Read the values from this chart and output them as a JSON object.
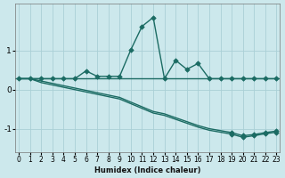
{
  "xlabel": "Humidex (Indice chaleur)",
  "bg_color": "#cce8ec",
  "grid_color": "#aad0d6",
  "line_color": "#1b6b63",
  "x_data": [
    0,
    1,
    2,
    3,
    4,
    5,
    6,
    7,
    8,
    9,
    10,
    11,
    12,
    13,
    14,
    15,
    16,
    17,
    18,
    19,
    20,
    21,
    22,
    23
  ],
  "line_main_y": [
    0.28,
    0.28,
    0.28,
    0.28,
    0.28,
    0.28,
    0.48,
    0.34,
    0.34,
    0.34,
    1.02,
    1.62,
    1.85,
    0.28,
    0.75,
    0.52,
    0.67,
    0.28,
    0.28,
    0.28,
    0.28,
    0.28,
    0.28,
    0.28
  ],
  "line_upper_declining_y": [
    0.28,
    0.28,
    0.22,
    0.16,
    0.1,
    0.04,
    -0.02,
    -0.08,
    -0.14,
    -0.2,
    -0.32,
    -0.44,
    -0.56,
    -0.62,
    -0.72,
    -0.82,
    -0.92,
    -1.0,
    -1.05,
    -1.1,
    -1.18,
    -1.15,
    -1.1,
    -1.06
  ],
  "line_lower_declining_y": [
    0.28,
    0.28,
    0.18,
    0.12,
    0.06,
    0.0,
    -0.06,
    -0.12,
    -0.18,
    -0.24,
    -0.36,
    -0.48,
    -0.6,
    -0.66,
    -0.76,
    -0.86,
    -0.96,
    -1.04,
    -1.09,
    -1.14,
    -1.22,
    -1.18,
    -1.13,
    -1.09
  ],
  "ylim": [
    -1.6,
    2.2
  ],
  "yticks": [
    -1,
    0,
    1
  ],
  "xlim": [
    -0.3,
    23.3
  ],
  "xticks": [
    0,
    1,
    2,
    3,
    4,
    5,
    6,
    7,
    8,
    9,
    10,
    11,
    12,
    13,
    14,
    15,
    16,
    17,
    18,
    19,
    20,
    21,
    22,
    23
  ]
}
